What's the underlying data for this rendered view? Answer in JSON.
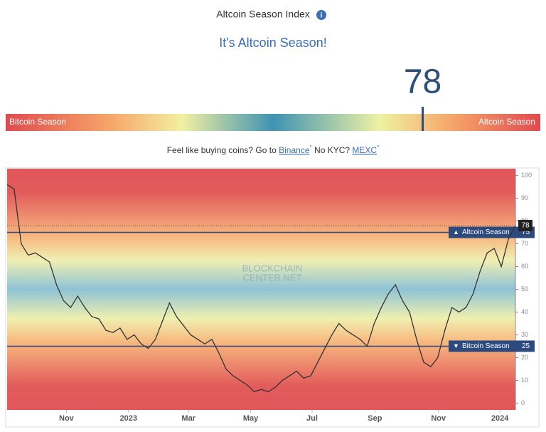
{
  "header": {
    "title": "Altcoin Season Index",
    "status": "It's Altcoin Season!",
    "index_value": 78
  },
  "gauge": {
    "left_label": "Bitcoin Season",
    "right_label": "Altcoin Season"
  },
  "promo": {
    "text1": "Feel like buying coins? Go to",
    "link1": "Binance",
    "mark": "°",
    "text2": "No KYC?",
    "link2": "MEXC"
  },
  "chart_data": {
    "type": "line",
    "color": "#333333",
    "watermark": [
      "BLOCKCHAIN",
      "CENTER.NET"
    ],
    "values": [
      96,
      94,
      70,
      65,
      66,
      64,
      62,
      52,
      45,
      42,
      47,
      42,
      38,
      37,
      32,
      31,
      33,
      28,
      30,
      26,
      24,
      28,
      36,
      44,
      38,
      34,
      30,
      28,
      26,
      28,
      22,
      15,
      12,
      10,
      8,
      5,
      6,
      5,
      7,
      10,
      12,
      14,
      11,
      12,
      18,
      24,
      30,
      35,
      32,
      30,
      28,
      25,
      35,
      42,
      48,
      52,
      45,
      40,
      28,
      18,
      16,
      20,
      32,
      42,
      40,
      42,
      48,
      58,
      66,
      68,
      60,
      72,
      78
    ],
    "xlim": [
      0,
      72
    ],
    "xticks": [
      {
        "value": 8.4,
        "label": "Nov"
      },
      {
        "value": 17.2,
        "label": "2023"
      },
      {
        "value": 25.7,
        "label": "Mar"
      },
      {
        "value": 34.5,
        "label": "May"
      },
      {
        "value": 43.2,
        "label": "Jul"
      },
      {
        "value": 52.1,
        "label": "Sep"
      },
      {
        "value": 61.1,
        "label": "Nov"
      },
      {
        "value": 69.8,
        "label": "2024"
      }
    ],
    "ylim": [
      -3,
      103
    ],
    "yticks": [
      0,
      10,
      20,
      30,
      40,
      50,
      60,
      70,
      80,
      90,
      100
    ],
    "annotations": [
      {
        "value": 75,
        "label": "Altcoin Season"
      },
      {
        "value": 25,
        "label": "Bitcoin Season"
      }
    ]
  }
}
